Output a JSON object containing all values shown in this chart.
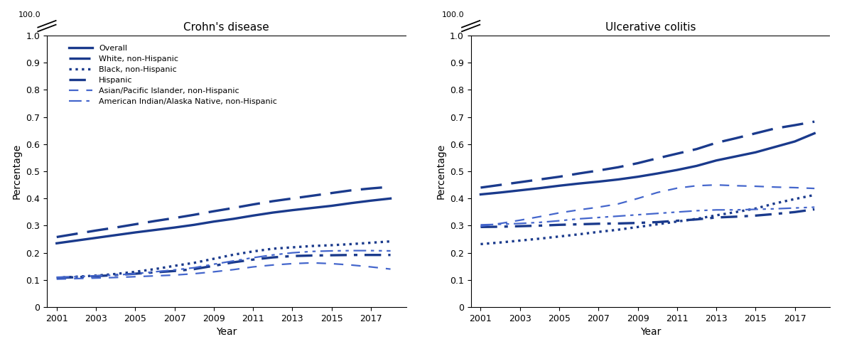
{
  "years": [
    2001,
    2002,
    2003,
    2004,
    2005,
    2006,
    2007,
    2008,
    2009,
    2010,
    2011,
    2012,
    2013,
    2014,
    2015,
    2016,
    2017,
    2018
  ],
  "crohns": {
    "overall": [
      0.235,
      0.245,
      0.255,
      0.265,
      0.275,
      0.284,
      0.293,
      0.303,
      0.315,
      0.325,
      0.337,
      0.348,
      0.357,
      0.365,
      0.373,
      0.383,
      0.392,
      0.4
    ],
    "white": [
      0.258,
      0.27,
      0.282,
      0.293,
      0.305,
      0.317,
      0.328,
      0.34,
      0.353,
      0.365,
      0.378,
      0.39,
      0.4,
      0.41,
      0.42,
      0.43,
      0.437,
      0.443
    ],
    "black": [
      0.108,
      0.112,
      0.116,
      0.122,
      0.13,
      0.14,
      0.152,
      0.163,
      0.178,
      0.193,
      0.205,
      0.215,
      0.22,
      0.225,
      0.228,
      0.232,
      0.237,
      0.242
    ],
    "hispanic": [
      0.108,
      0.11,
      0.114,
      0.118,
      0.123,
      0.128,
      0.133,
      0.14,
      0.152,
      0.165,
      0.175,
      0.183,
      0.188,
      0.19,
      0.191,
      0.192,
      0.192,
      0.192
    ],
    "asian": [
      0.103,
      0.105,
      0.107,
      0.109,
      0.112,
      0.115,
      0.118,
      0.123,
      0.13,
      0.138,
      0.148,
      0.155,
      0.16,
      0.163,
      0.16,
      0.155,
      0.148,
      0.14
    ],
    "american_indian": [
      0.11,
      0.112,
      0.115,
      0.118,
      0.123,
      0.13,
      0.137,
      0.145,
      0.158,
      0.17,
      0.182,
      0.192,
      0.2,
      0.205,
      0.207,
      0.208,
      0.208,
      0.207
    ]
  },
  "uc": {
    "overall": [
      0.415,
      0.422,
      0.43,
      0.438,
      0.447,
      0.455,
      0.462,
      0.47,
      0.48,
      0.492,
      0.505,
      0.52,
      0.54,
      0.555,
      0.57,
      0.59,
      0.61,
      0.64
    ],
    "white": [
      0.44,
      0.45,
      0.46,
      0.47,
      0.48,
      0.492,
      0.503,
      0.515,
      0.53,
      0.548,
      0.565,
      0.582,
      0.605,
      0.622,
      0.64,
      0.658,
      0.67,
      0.683
    ],
    "black": [
      0.232,
      0.238,
      0.245,
      0.252,
      0.26,
      0.268,
      0.277,
      0.285,
      0.295,
      0.305,
      0.315,
      0.325,
      0.338,
      0.35,
      0.363,
      0.382,
      0.398,
      0.413
    ],
    "hispanic": [
      0.295,
      0.296,
      0.298,
      0.3,
      0.303,
      0.305,
      0.307,
      0.308,
      0.31,
      0.313,
      0.318,
      0.323,
      0.33,
      0.333,
      0.337,
      0.343,
      0.35,
      0.36
    ],
    "asian": [
      0.298,
      0.308,
      0.32,
      0.333,
      0.347,
      0.358,
      0.368,
      0.38,
      0.4,
      0.422,
      0.438,
      0.447,
      0.45,
      0.447,
      0.445,
      0.442,
      0.44,
      0.437
    ],
    "american_indian": [
      0.303,
      0.305,
      0.308,
      0.312,
      0.318,
      0.325,
      0.33,
      0.335,
      0.34,
      0.345,
      0.35,
      0.355,
      0.358,
      0.358,
      0.36,
      0.362,
      0.365,
      0.368
    ]
  },
  "color_dark": "#1a3a8c",
  "color_light": "#4466cc",
  "title_crohns": "Crohn's disease",
  "title_uc": "Ulcerative colitis",
  "xlabel": "Year",
  "ylabel": "Percentage",
  "legend_labels": [
    "Overall",
    "White, non-Hispanic",
    "Black, non-Hispanic",
    "Hispanic",
    "Asian/Pacific Islander, non-Hispanic",
    "American Indian/Alaska Native, non-Hispanic"
  ],
  "ytick_vals": [
    0,
    0.1,
    0.2,
    0.3,
    0.4,
    0.5,
    0.6,
    0.7,
    0.8,
    0.9,
    1.0
  ],
  "ytick_labels": [
    "0",
    "0.1",
    "0.2",
    "0.3",
    "0.4",
    "0.5",
    "0.6",
    "0.7",
    "0.8",
    "0.9",
    "1.0"
  ],
  "xticks": [
    2001,
    2003,
    2005,
    2007,
    2009,
    2011,
    2013,
    2015,
    2017
  ]
}
